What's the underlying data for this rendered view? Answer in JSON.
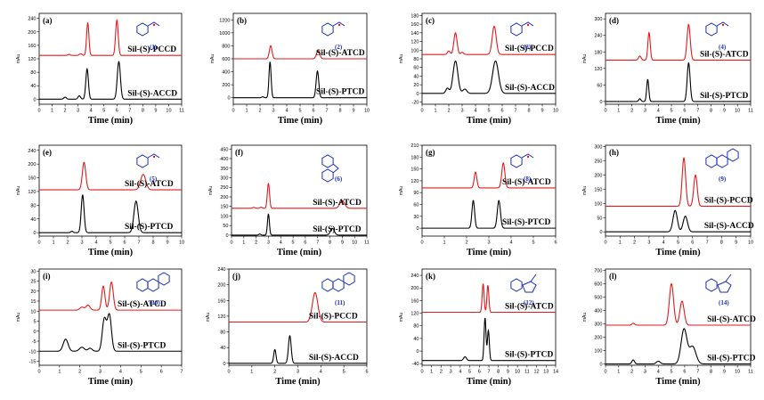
{
  "chart_data": [
    {
      "panel": "(a)",
      "type": "line",
      "compound": "(1)",
      "ylabel": "mAu",
      "xlabel": "Time (min)",
      "xlim": [
        0,
        11
      ],
      "xticks": [
        0,
        1,
        2,
        3,
        4,
        5,
        6,
        7,
        8,
        9,
        10,
        11
      ],
      "ylim": [
        -15,
        255
      ],
      "yticks": [
        0,
        40,
        80,
        120,
        160,
        200,
        240
      ],
      "series": [
        {
          "name": "Sil-(S)-PCCD",
          "color": "#e31a1c",
          "baseline": 130,
          "peaks": [
            [
              2.3,
              3,
              0.1
            ],
            [
              3.2,
              5,
              0.1
            ],
            [
              3.75,
              97,
              0.09
            ],
            [
              6.0,
              105,
              0.1
            ]
          ]
        },
        {
          "name": "Sil-(S)-ACCD",
          "color": "#000000",
          "baseline": 0,
          "peaks": [
            [
              2.0,
              6,
              0.1
            ],
            [
              3.1,
              10,
              0.1
            ],
            [
              3.7,
              90,
              0.1
            ],
            [
              6.15,
              112,
              0.12
            ]
          ]
        }
      ]
    },
    {
      "panel": "(b)",
      "type": "line",
      "compound": "(2)",
      "ylabel": "mAu",
      "xlabel": "Time (min)",
      "xlim": [
        0,
        10
      ],
      "xticks": [
        0,
        1,
        2,
        3,
        4,
        5,
        6,
        7,
        8,
        9,
        10
      ],
      "ylim": [
        -100,
        1300
      ],
      "yticks": [
        0,
        200,
        400,
        600,
        800,
        1000,
        1200
      ],
      "series": [
        {
          "name": "Sil-(S)-ATCD",
          "color": "#e31a1c",
          "baseline": 600,
          "peaks": [
            [
              2.8,
              200,
              0.1
            ],
            [
              6.35,
              130,
              0.12
            ]
          ]
        },
        {
          "name": "Sil-(S)-PTCD",
          "color": "#000000",
          "baseline": 0,
          "peaks": [
            [
              2.2,
              15,
              0.08
            ],
            [
              2.75,
              550,
              0.08
            ],
            [
              6.3,
              410,
              0.1
            ]
          ]
        }
      ]
    },
    {
      "panel": "(c)",
      "type": "line",
      "compound": "(3)",
      "ylabel": "mAu",
      "xlabel": "Time (min)",
      "xlim": [
        0,
        10
      ],
      "xticks": [
        0,
        1,
        2,
        3,
        4,
        5,
        6,
        7,
        8,
        9,
        10
      ],
      "ylim": [
        -25,
        185
      ],
      "yticks": [
        -20,
        0,
        20,
        40,
        60,
        80,
        100,
        120,
        140,
        160,
        180
      ],
      "series": [
        {
          "name": "Sil-(S)-PCCD",
          "color": "#e31a1c",
          "baseline": 90,
          "peaks": [
            [
              2.0,
              8,
              0.1
            ],
            [
              2.5,
              50,
              0.12
            ],
            [
              3.0,
              5,
              0.1
            ],
            [
              5.4,
              65,
              0.15
            ]
          ]
        },
        {
          "name": "Sil-(S)-ACCD",
          "color": "#000000",
          "baseline": 0,
          "peaks": [
            [
              1.9,
              12,
              0.12
            ],
            [
              2.5,
              75,
              0.18
            ],
            [
              3.2,
              10,
              0.15
            ],
            [
              5.5,
              75,
              0.22
            ]
          ]
        }
      ]
    },
    {
      "panel": "(d)",
      "type": "line",
      "compound": "(4)",
      "ylabel": "mAu",
      "xlabel": "Time (min)",
      "xlim": [
        0,
        11
      ],
      "xticks": [
        0,
        1,
        2,
        3,
        4,
        5,
        6,
        7,
        8,
        9,
        10,
        11
      ],
      "ylim": [
        -10,
        320
      ],
      "yticks": [
        0,
        60,
        120,
        180,
        240,
        300
      ],
      "series": [
        {
          "name": "Sil-(S)-ATCD",
          "color": "#e31a1c",
          "baseline": 150,
          "peaks": [
            [
              2.6,
              15,
              0.1
            ],
            [
              3.3,
              100,
              0.09
            ],
            [
              6.3,
              130,
              0.12
            ]
          ]
        },
        {
          "name": "Sil-(S)-PTCD",
          "color": "#000000",
          "baseline": 0,
          "peaks": [
            [
              2.6,
              10,
              0.08
            ],
            [
              3.2,
              80,
              0.08
            ],
            [
              6.3,
              140,
              0.11
            ]
          ]
        }
      ]
    },
    {
      "panel": "(e)",
      "type": "line",
      "compound": "(5)",
      "ylabel": "mAu",
      "xlabel": "Time (min)",
      "xlim": [
        0,
        10
      ],
      "xticks": [
        0,
        1,
        2,
        3,
        4,
        5,
        6,
        7,
        8,
        9,
        10
      ],
      "ylim": [
        -10,
        255
      ],
      "yticks": [
        0,
        40,
        80,
        120,
        160,
        200,
        240
      ],
      "series": [
        {
          "name": "Sil-(S)-ATCD",
          "color": "#e31a1c",
          "baseline": 125,
          "peaks": [
            [
              3.15,
              80,
              0.12
            ],
            [
              7.3,
              45,
              0.18
            ]
          ]
        },
        {
          "name": "Sil-(S)-PTCD",
          "color": "#000000",
          "baseline": 0,
          "peaks": [
            [
              2.3,
              4,
              0.08
            ],
            [
              3.05,
              110,
              0.1
            ],
            [
              6.8,
              92,
              0.15
            ]
          ]
        }
      ]
    },
    {
      "panel": "(f)",
      "type": "line",
      "compound": "(6)",
      "ylabel": "mAu",
      "xlabel": "Time (min)",
      "xlim": [
        0,
        11
      ],
      "xticks": [
        0,
        1,
        2,
        3,
        4,
        5,
        6,
        7,
        8,
        9,
        10,
        11
      ],
      "ylim": [
        -5,
        470
      ],
      "yticks": [
        0,
        50,
        100,
        150,
        200,
        250,
        300,
        350,
        400,
        450
      ],
      "series": [
        {
          "name": "Sil-(S)-ATCD",
          "color": "#e31a1c",
          "baseline": 140,
          "peaks": [
            [
              1.8,
              5,
              0.1
            ],
            [
              2.4,
              6,
              0.1
            ],
            [
              3.0,
              130,
              0.09
            ],
            [
              9.0,
              40,
              0.2
            ]
          ]
        },
        {
          "name": "Sil-(S)-PTCD",
          "color": "#000000",
          "baseline": 0,
          "peaks": [
            [
              2.3,
              6,
              0.08
            ],
            [
              3.0,
              110,
              0.08
            ],
            [
              8.2,
              35,
              0.16
            ]
          ]
        }
      ]
    },
    {
      "panel": "(g)",
      "type": "line",
      "compound": "(8)",
      "ylabel": "mAu",
      "xlabel": "Time (min)",
      "xlim": [
        0,
        6
      ],
      "xticks": [
        0,
        1,
        2,
        3,
        4,
        5,
        6
      ],
      "ylim": [
        -20,
        210
      ],
      "yticks": [
        0,
        30,
        60,
        90,
        120,
        150,
        180,
        210
      ],
      "series": [
        {
          "name": "Sil-(S)-ATCD",
          "color": "#e31a1c",
          "baseline": 102,
          "peaks": [
            [
              2.4,
              40,
              0.06
            ],
            [
              3.65,
              63,
              0.07
            ]
          ]
        },
        {
          "name": "Sil-(S)-PTCD",
          "color": "#000000",
          "baseline": 0,
          "peaks": [
            [
              2.3,
              70,
              0.06
            ],
            [
              3.45,
              70,
              0.07
            ]
          ]
        }
      ]
    },
    {
      "panel": "(h)",
      "type": "line",
      "compound": "(9)",
      "ylabel": "mAu",
      "xlabel": "Time (min)",
      "xlim": [
        0,
        10
      ],
      "xticks": [
        0,
        1,
        2,
        3,
        4,
        5,
        6,
        7,
        8,
        9,
        10
      ],
      "ylim": [
        -15,
        305
      ],
      "yticks": [
        0,
        50,
        100,
        150,
        200,
        250,
        300
      ],
      "series": [
        {
          "name": "Sil-(S)-PCCD",
          "color": "#e31a1c",
          "baseline": 90,
          "peaks": [
            [
              5.4,
              170,
              0.12
            ],
            [
              6.2,
              110,
              0.12
            ]
          ]
        },
        {
          "name": "Sil-(S)-ACCD",
          "color": "#000000",
          "baseline": 0,
          "peaks": [
            [
              4.8,
              75,
              0.15
            ],
            [
              5.5,
              55,
              0.15
            ]
          ]
        }
      ]
    },
    {
      "panel": "(i)",
      "type": "line",
      "compound": "(10)",
      "ylabel": "mAu",
      "xlabel": "Time (min)",
      "xlim": [
        0,
        7
      ],
      "xticks": [
        0,
        1,
        2,
        3,
        4,
        5,
        6,
        7
      ],
      "ylim": [
        -17,
        31
      ],
      "yticks": [
        -15,
        -10,
        -5,
        0,
        5,
        10,
        15,
        20,
        25,
        30
      ],
      "series": [
        {
          "name": "Sil-(S)-ATCD",
          "color": "#e31a1c",
          "baseline": 10.5,
          "peaks": [
            [
              2.1,
              1.5,
              0.1
            ],
            [
              2.4,
              2.5,
              0.1
            ],
            [
              3.15,
              12,
              0.08
            ],
            [
              3.55,
              14,
              0.09
            ]
          ]
        },
        {
          "name": "Sil-(S)-PTCD",
          "color": "#000000",
          "baseline": -10,
          "peaks": [
            [
              1.3,
              6,
              0.12
            ],
            [
              2.1,
              2,
              0.12
            ],
            [
              2.5,
              1.5,
              0.1
            ],
            [
              3.2,
              16,
              0.1
            ],
            [
              3.45,
              18,
              0.1
            ]
          ]
        }
      ]
    },
    {
      "panel": "(j)",
      "type": "line",
      "compound": "(11)",
      "ylabel": "mAu",
      "xlabel": "Time (min)",
      "xlim": [
        0,
        6
      ],
      "xticks": [
        0,
        1,
        2,
        3,
        4,
        5,
        6
      ],
      "ylim": [
        -5,
        240
      ],
      "yticks": [
        0,
        40,
        80,
        120,
        160,
        200,
        240
      ],
      "series": [
        {
          "name": "Sil-(S)-PCCD",
          "color": "#e31a1c",
          "baseline": 105,
          "peaks": [
            [
              3.75,
              75,
              0.12
            ]
          ]
        },
        {
          "name": "Sil-(S)-ACCD",
          "color": "#000000",
          "baseline": 0,
          "peaks": [
            [
              2.0,
              35,
              0.05
            ],
            [
              2.65,
              70,
              0.06
            ]
          ]
        }
      ]
    },
    {
      "panel": "(k)",
      "type": "line",
      "compound": "(12)",
      "ylabel": "mAu",
      "xlabel": "Time (min)",
      "xlim": [
        0,
        14
      ],
      "xticks": [
        0,
        1,
        2,
        3,
        4,
        5,
        6,
        7,
        8,
        9,
        10,
        11,
        12,
        13,
        14
      ],
      "ylim": [
        -45,
        260
      ],
      "yticks": [
        -40,
        0,
        40,
        80,
        120,
        160,
        200,
        240
      ],
      "series": [
        {
          "name": "Sil-(S)-ATCD",
          "color": "#e31a1c",
          "baseline": 123,
          "peaks": [
            [
              6.4,
              90,
              0.1
            ],
            [
              6.9,
              85,
              0.1
            ]
          ]
        },
        {
          "name": "Sil-(S)-PTCD",
          "color": "#000000",
          "baseline": -30,
          "peaks": [
            [
              4.5,
              12,
              0.15
            ],
            [
              6.6,
              135,
              0.1
            ],
            [
              6.95,
              95,
              0.1
            ]
          ]
        }
      ]
    },
    {
      "panel": "(l)",
      "type": "line",
      "compound": "(14)",
      "ylabel": "mAu",
      "xlabel": "Time (min)",
      "xlim": [
        0,
        11
      ],
      "xticks": [
        0,
        1,
        2,
        3,
        4,
        5,
        6,
        7,
        8,
        9,
        10,
        11
      ],
      "ylim": [
        -10,
        710
      ],
      "yticks": [
        0,
        100,
        200,
        300,
        400,
        500,
        600,
        700
      ],
      "series": [
        {
          "name": "Sil-(S)-ATCD",
          "color": "#e31a1c",
          "baseline": 290,
          "peaks": [
            [
              2.1,
              15,
              0.1
            ],
            [
              5.0,
              310,
              0.16
            ],
            [
              5.8,
              180,
              0.16
            ]
          ]
        },
        {
          "name": "Sil-(S)-PTCD",
          "color": "#000000",
          "baseline": 0,
          "peaks": [
            [
              2.1,
              30,
              0.1
            ],
            [
              4.0,
              20,
              0.15
            ],
            [
              5.95,
              260,
              0.22
            ],
            [
              6.6,
              130,
              0.25
            ]
          ]
        }
      ]
    }
  ]
}
